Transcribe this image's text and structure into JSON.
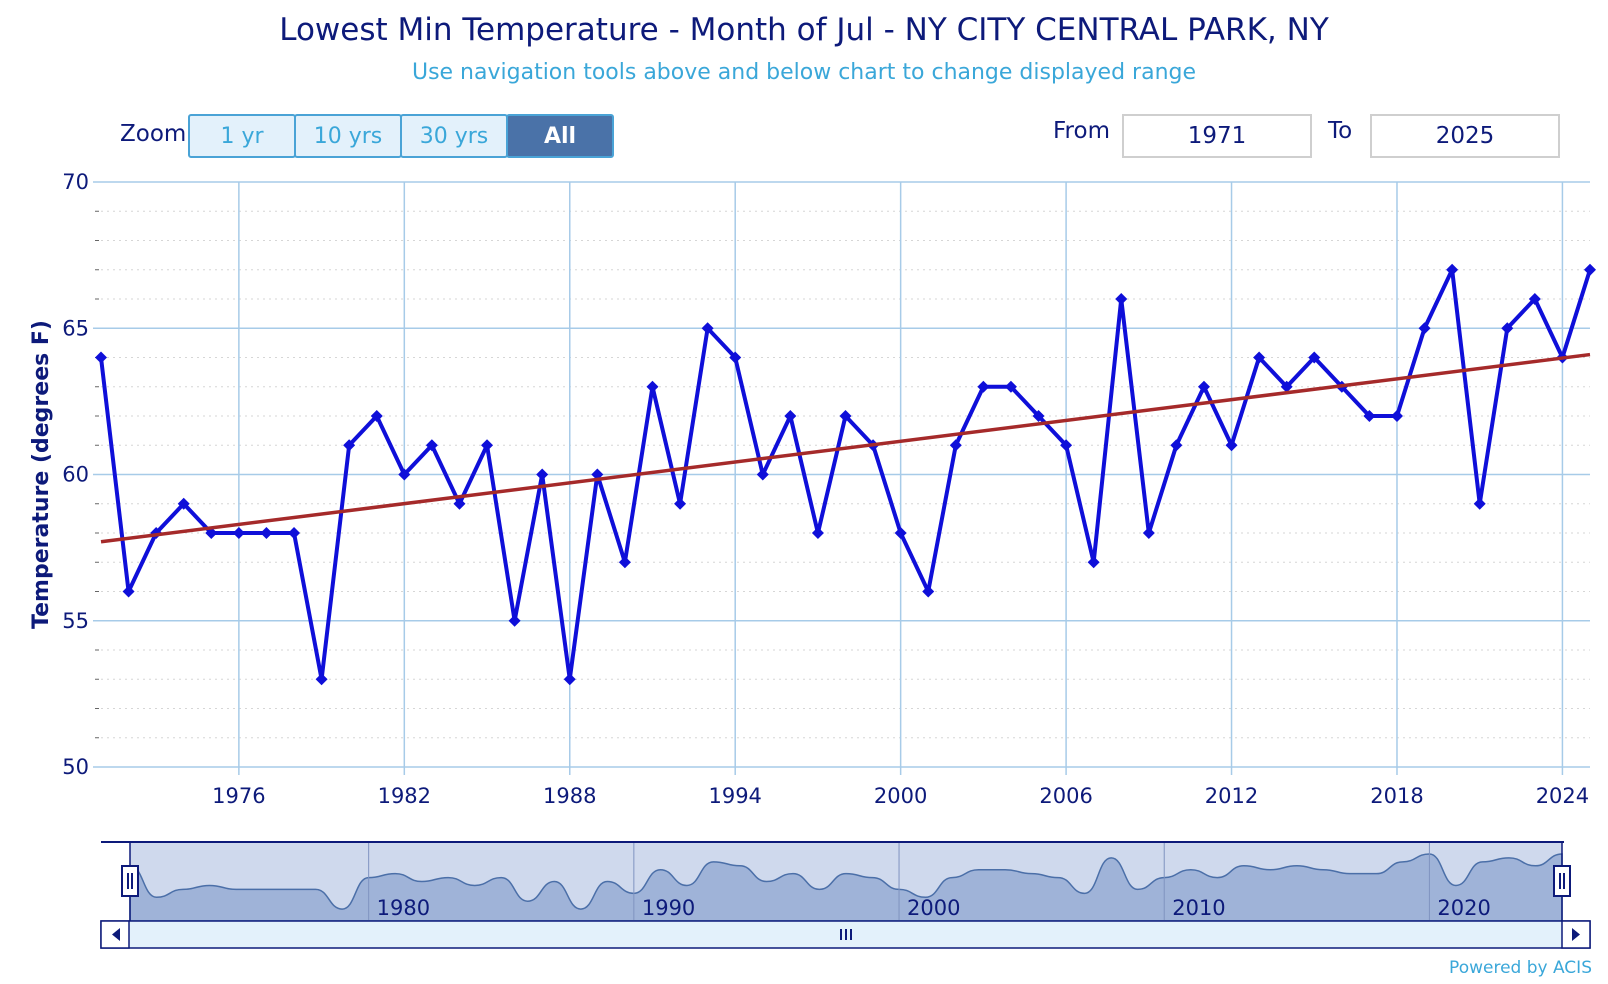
{
  "title": "Lowest Min Temperature - Month of Jul - NY CITY CENTRAL PARK, NY",
  "subtitle": "Use navigation tools above and below chart to change displayed range",
  "zoom": {
    "label": "Zoom",
    "buttons": [
      "1 yr",
      "10 yrs",
      "30 yrs",
      "All"
    ],
    "active": "All"
  },
  "range": {
    "from_label": "From",
    "from_value": "1971",
    "to_label": "To",
    "to_value": "2025"
  },
  "powered_by": "Powered by ACIS",
  "colors": {
    "series": "#0f0fd9",
    "trend": "#a52a2a",
    "grid": "#a7cbe8",
    "nav_fill": "#9fb3d8"
  },
  "chart_data": {
    "type": "line",
    "title": "Lowest Min Temperature - Month of Jul - NY CITY CENTRAL PARK, NY",
    "ylabel": "Temperature (degrees F)",
    "xlabel": "",
    "ylim": [
      50,
      70
    ],
    "yticks": [
      50,
      55,
      60,
      65,
      70
    ],
    "xticks": [
      1976,
      1982,
      1988,
      1994,
      2000,
      2006,
      2012,
      2018,
      2024
    ],
    "xlim": [
      1971,
      2025
    ],
    "grid": true,
    "x": [
      1971,
      1972,
      1973,
      1974,
      1975,
      1976,
      1977,
      1978,
      1979,
      1980,
      1981,
      1982,
      1983,
      1984,
      1985,
      1986,
      1987,
      1988,
      1989,
      1990,
      1991,
      1992,
      1993,
      1994,
      1995,
      1996,
      1997,
      1998,
      1999,
      2000,
      2001,
      2002,
      2003,
      2004,
      2005,
      2006,
      2007,
      2008,
      2009,
      2010,
      2011,
      2012,
      2013,
      2014,
      2015,
      2016,
      2017,
      2018,
      2019,
      2020,
      2021,
      2022,
      2023,
      2024,
      2025
    ],
    "series": [
      {
        "values": [
          64,
          56,
          58,
          59,
          58,
          58,
          58,
          58,
          53,
          61,
          62,
          60,
          61,
          59,
          61,
          55,
          60,
          53,
          60,
          57,
          63,
          59,
          65,
          64,
          60,
          62,
          58,
          62,
          61,
          58,
          56,
          61,
          63,
          63,
          62,
          61,
          57,
          66,
          58,
          61,
          63,
          61,
          64,
          63,
          64,
          63,
          62,
          62,
          65,
          67,
          59,
          65,
          66,
          64,
          67
        ]
      }
    ],
    "trend": {
      "x": [
        1971,
        2025
      ],
      "y": [
        57.7,
        64.1
      ]
    },
    "navigator": {
      "xticks": [
        1980,
        1990,
        2000,
        2010,
        2020
      ]
    }
  }
}
